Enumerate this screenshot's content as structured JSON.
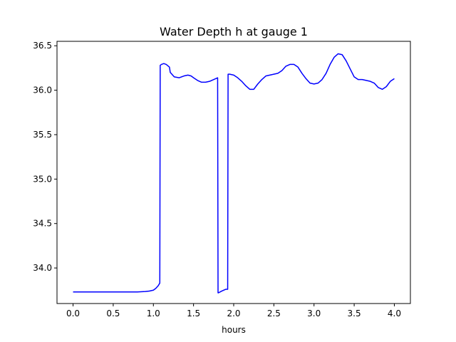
{
  "chart_data": {
    "type": "line",
    "title": "Water Depth h at gauge 1",
    "xlabel": "hours",
    "ylabel": "",
    "xlim": [
      -0.2,
      4.2
    ],
    "ylim": [
      33.6,
      36.55
    ],
    "xticks": [
      0.0,
      0.5,
      1.0,
      1.5,
      2.0,
      2.5,
      3.0,
      3.5,
      4.0
    ],
    "xtick_labels": [
      "0.0",
      "0.5",
      "1.0",
      "1.5",
      "2.0",
      "2.5",
      "3.0",
      "3.5",
      "4.0"
    ],
    "yticks": [
      34.0,
      34.5,
      35.0,
      35.5,
      36.0,
      36.5
    ],
    "ytick_labels": [
      "34.0",
      "34.5",
      "35.0",
      "35.5",
      "36.0",
      "36.5"
    ],
    "grid": false,
    "series": [
      {
        "color": "#0000ff",
        "x": [
          0.0,
          0.3,
          0.6,
          0.8,
          0.9,
          0.95,
          1.0,
          1.03,
          1.06,
          1.08,
          1.085,
          1.1,
          1.13,
          1.16,
          1.2,
          1.21,
          1.26,
          1.32,
          1.38,
          1.43,
          1.47,
          1.5,
          1.55,
          1.6,
          1.65,
          1.7,
          1.75,
          1.8,
          1.805,
          1.81,
          1.85,
          1.9,
          1.925,
          1.93,
          1.95,
          2.0,
          2.05,
          2.1,
          2.15,
          2.2,
          2.25,
          2.3,
          2.35,
          2.4,
          2.45,
          2.5,
          2.55,
          2.6,
          2.65,
          2.7,
          2.75,
          2.8,
          2.85,
          2.9,
          2.95,
          3.0,
          3.05,
          3.1,
          3.15,
          3.2,
          3.25,
          3.3,
          3.35,
          3.4,
          3.45,
          3.5,
          3.55,
          3.6,
          3.65,
          3.7,
          3.75,
          3.8,
          3.85,
          3.9,
          3.95,
          4.0
        ],
        "y": [
          33.73,
          33.73,
          33.73,
          33.73,
          33.735,
          33.74,
          33.75,
          33.77,
          33.8,
          33.83,
          36.28,
          36.29,
          36.3,
          36.29,
          36.26,
          36.2,
          36.15,
          36.14,
          36.16,
          36.17,
          36.16,
          36.14,
          36.11,
          36.09,
          36.09,
          36.1,
          36.12,
          36.14,
          33.72,
          33.72,
          33.74,
          33.76,
          33.76,
          36.18,
          36.18,
          36.17,
          36.14,
          36.1,
          36.05,
          36.01,
          36.01,
          36.07,
          36.12,
          36.16,
          36.17,
          36.18,
          36.19,
          36.22,
          36.27,
          36.29,
          36.29,
          36.26,
          36.19,
          36.13,
          36.08,
          36.07,
          36.08,
          36.12,
          36.19,
          36.29,
          36.37,
          36.41,
          36.4,
          36.33,
          36.24,
          36.15,
          36.12,
          36.12,
          36.11,
          36.1,
          36.08,
          36.03,
          36.01,
          36.04,
          36.1,
          36.13
        ]
      }
    ]
  }
}
